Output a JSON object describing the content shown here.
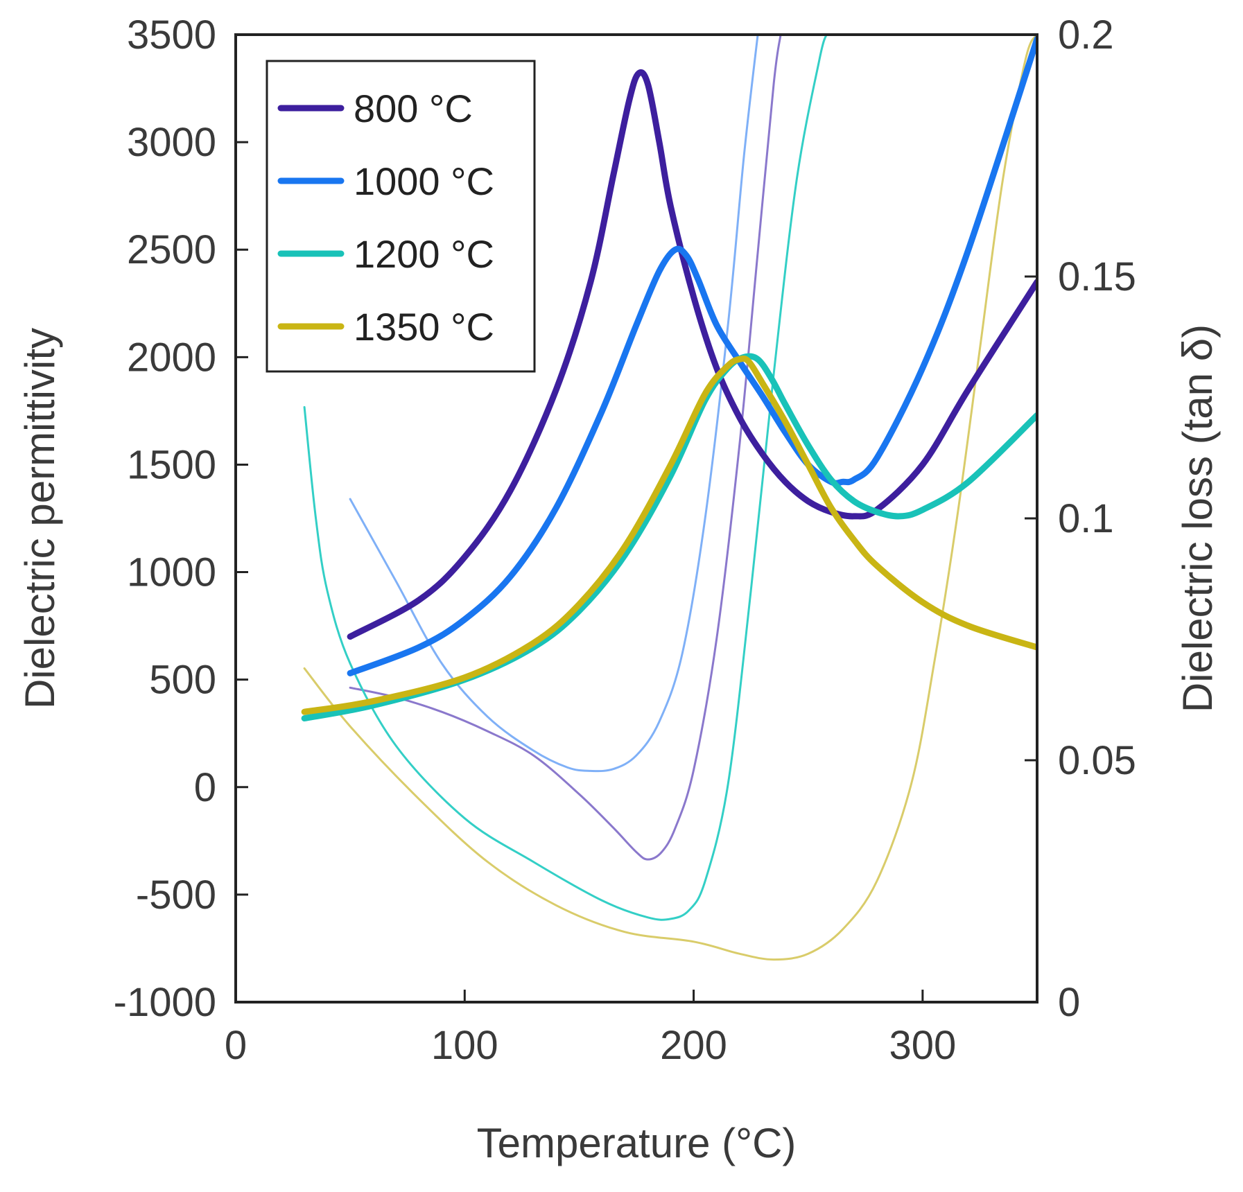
{
  "chart_data": {
    "type": "line",
    "title": "",
    "xlabel": "Temperature (°C)",
    "ylabel_left": "Dielectric permittivity",
    "ylabel_right": "Dielectric loss (tan δ)",
    "xlim": [
      0,
      350
    ],
    "ylim_left": [
      -1000,
      3500
    ],
    "ylim_right": [
      0,
      0.2
    ],
    "x_ticks": [
      "0",
      "100",
      "200",
      "300"
    ],
    "x_tick_values": [
      0,
      100,
      200,
      300
    ],
    "y_ticks_left": [
      "-1000",
      "-500",
      "0",
      "500",
      "1000",
      "1500",
      "2000",
      "2500",
      "3000",
      "3500"
    ],
    "y_tick_values_left": [
      -1000,
      -500,
      0,
      500,
      1000,
      1500,
      2000,
      2500,
      3000,
      3500
    ],
    "y_ticks_right": [
      "0",
      "0.05",
      "0.1",
      "0.15",
      "0.2"
    ],
    "y_tick_values_right": [
      0,
      0.05,
      0.1,
      0.15,
      0.2
    ],
    "grid": false,
    "legend_position": "top-left",
    "legend": [
      {
        "label": "800 °C",
        "color": "#3d1f9e"
      },
      {
        "label": "1000 °C",
        "color": "#1976f0"
      },
      {
        "label": "1200 °C",
        "color": "#19c2b8"
      },
      {
        "label": "1350 °C",
        "color": "#c9b514"
      }
    ],
    "series": [
      {
        "name": "800 °C",
        "kind": "permittivity",
        "axis": "left",
        "color": "#3d1f9e",
        "width": "thick",
        "x": [
          50,
          80,
          100,
          120,
          140,
          155,
          165,
          172,
          176,
          180,
          185,
          190,
          200,
          210,
          220,
          230,
          240,
          250,
          260,
          270,
          280,
          300,
          320,
          350
        ],
        "y": [
          700,
          870,
          1070,
          1380,
          1850,
          2350,
          2850,
          3200,
          3320,
          3270,
          3000,
          2700,
          2280,
          1950,
          1720,
          1550,
          1420,
          1330,
          1280,
          1260,
          1290,
          1500,
          1850,
          2350
        ]
      },
      {
        "name": "1000 °C",
        "kind": "permittivity",
        "axis": "left",
        "color": "#1976f0",
        "width": "thick",
        "x": [
          50,
          80,
          100,
          120,
          140,
          160,
          175,
          185,
          192,
          197,
          202,
          210,
          220,
          230,
          240,
          250,
          260,
          265,
          270,
          280,
          300,
          320,
          350
        ],
        "y": [
          530,
          650,
          780,
          980,
          1300,
          1750,
          2150,
          2400,
          2500,
          2470,
          2360,
          2150,
          1980,
          1820,
          1650,
          1500,
          1420,
          1420,
          1430,
          1530,
          1950,
          2500,
          3480
        ]
      },
      {
        "name": "1200 °C",
        "kind": "permittivity",
        "axis": "left",
        "color": "#19c2b8",
        "width": "thick",
        "x": [
          30,
          60,
          100,
          130,
          150,
          170,
          190,
          205,
          215,
          222,
          228,
          234,
          240,
          250,
          260,
          270,
          280,
          290,
          300,
          320,
          350
        ],
        "y": [
          320,
          380,
          500,
          650,
          820,
          1080,
          1450,
          1800,
          1950,
          2000,
          1990,
          1900,
          1780,
          1590,
          1430,
          1330,
          1280,
          1260,
          1290,
          1420,
          1730
        ]
      },
      {
        "name": "1350 °C",
        "kind": "permittivity",
        "axis": "left",
        "color": "#c9b514",
        "width": "thick",
        "x": [
          30,
          60,
          100,
          130,
          150,
          170,
          190,
          205,
          215,
          220,
          224,
          230,
          240,
          250,
          260,
          270,
          280,
          300,
          320,
          350
        ],
        "y": [
          350,
          400,
          510,
          670,
          850,
          1120,
          1500,
          1830,
          1960,
          1990,
          1980,
          1880,
          1700,
          1500,
          1300,
          1150,
          1030,
          860,
          750,
          650
        ]
      },
      {
        "name": "800 °C",
        "kind": "loss",
        "axis": "right",
        "color": "#8a78cc",
        "width": "thin",
        "x": [
          50,
          70,
          90,
          110,
          130,
          150,
          165,
          175,
          180,
          186,
          192,
          200,
          210,
          220,
          228,
          235,
          238
        ],
        "y": [
          0.065,
          0.063,
          0.06,
          0.056,
          0.051,
          0.043,
          0.036,
          0.031,
          0.0295,
          0.031,
          0.036,
          0.048,
          0.075,
          0.115,
          0.155,
          0.19,
          0.2
        ]
      },
      {
        "name": "1000 °C",
        "kind": "loss",
        "axis": "right",
        "color": "#7fb0f7",
        "width": "thin",
        "x": [
          50,
          70,
          90,
          110,
          130,
          145,
          155,
          165,
          175,
          185,
          195,
          205,
          215,
          222,
          228
        ],
        "y": [
          0.104,
          0.087,
          0.07,
          0.059,
          0.052,
          0.0485,
          0.0478,
          0.0482,
          0.051,
          0.058,
          0.072,
          0.1,
          0.14,
          0.175,
          0.2
        ]
      },
      {
        "name": "1200 °C",
        "kind": "loss",
        "axis": "right",
        "color": "#33cfc6",
        "width": "thin",
        "x": [
          30,
          35,
          40,
          50,
          70,
          100,
          130,
          160,
          180,
          190,
          198,
          205,
          215,
          225,
          235,
          245,
          255,
          258
        ],
        "y": [
          0.123,
          0.1,
          0.085,
          0.07,
          0.053,
          0.038,
          0.029,
          0.021,
          0.0175,
          0.0172,
          0.019,
          0.025,
          0.045,
          0.085,
          0.13,
          0.17,
          0.195,
          0.2
        ]
      },
      {
        "name": "1350 °C",
        "kind": "loss",
        "axis": "right",
        "color": "#d9cc6a",
        "width": "thin",
        "x": [
          30,
          50,
          80,
          110,
          140,
          170,
          200,
          220,
          235,
          250,
          265,
          280,
          295,
          305,
          315,
          325,
          335,
          345,
          350
        ],
        "y": [
          0.069,
          0.057,
          0.042,
          0.029,
          0.02,
          0.0145,
          0.0125,
          0.01,
          0.0088,
          0.01,
          0.015,
          0.025,
          0.045,
          0.07,
          0.1,
          0.135,
          0.17,
          0.195,
          0.2
        ]
      }
    ]
  }
}
